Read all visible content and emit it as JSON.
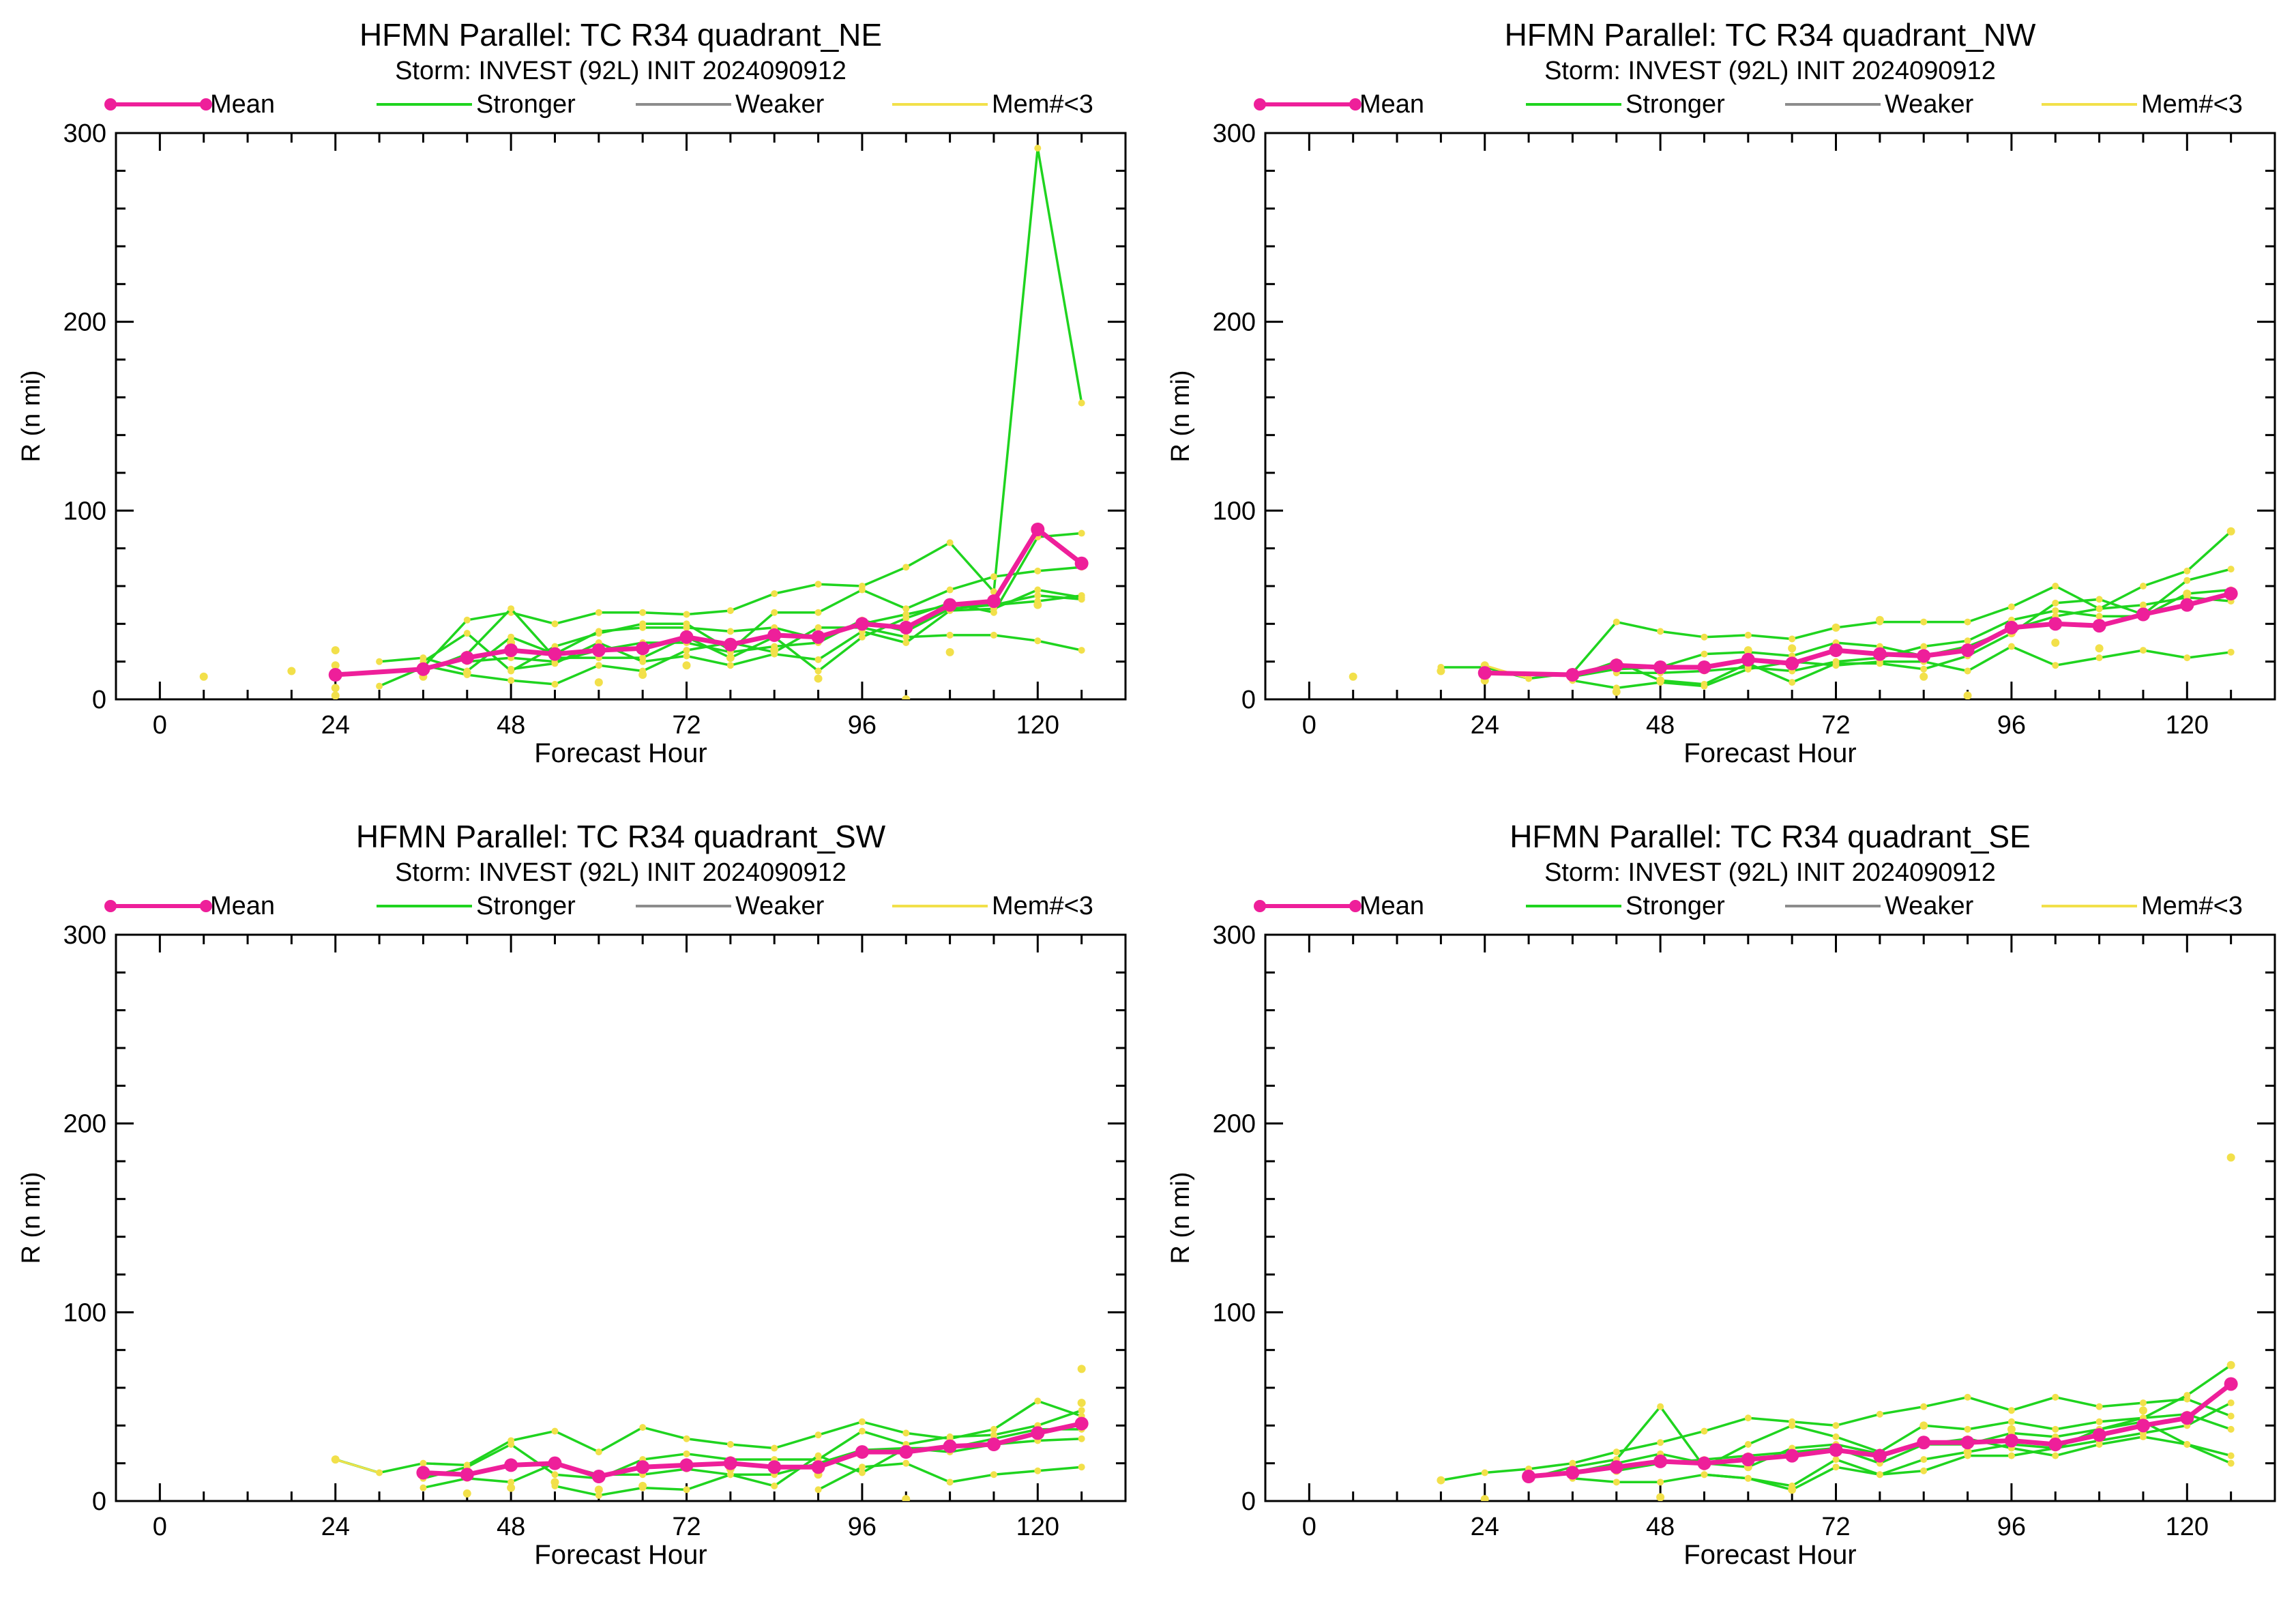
{
  "legend": {
    "mean": "Mean",
    "stronger": "Stronger",
    "weaker": "Weaker",
    "few": "Mem#<3"
  },
  "colors": {
    "mean": "#ee1f9a",
    "stronger": "#1fd41f",
    "weaker": "#8c8c8c",
    "few": "#f2e04a",
    "axis": "#000000"
  },
  "chart_data": [
    {
      "type": "line",
      "title": "HFMN Parallel: TC  R34 quadrant_NE",
      "subtitle": "Storm: INVEST (92L) INIT 2024090912",
      "xlabel": "Forecast Hour",
      "ylabel": "R (n mi)",
      "xlim": [
        -6,
        132
      ],
      "ylim": [
        0,
        300
      ],
      "xticks": [
        0,
        24,
        48,
        72,
        96,
        120
      ],
      "yticks": [
        0,
        100,
        200,
        300
      ],
      "mean": {
        "x": [
          24,
          36,
          42,
          48,
          54,
          60,
          66,
          72,
          78,
          84,
          90,
          96,
          102,
          108,
          114,
          120,
          126
        ],
        "y": [
          13,
          16,
          22,
          26,
          24,
          26,
          27,
          33,
          29,
          34,
          33,
          40,
          38,
          50,
          52,
          90,
          72
        ]
      },
      "stronger": [
        {
          "x": [
            30,
            36,
            42,
            48,
            54,
            60,
            66,
            72,
            78,
            84,
            90,
            96,
            102,
            108,
            114,
            120,
            126
          ],
          "y": [
            7,
            17,
            42,
            46,
            40,
            46,
            46,
            45,
            47,
            56,
            61,
            60,
            70,
            83,
            57,
            292,
            157
          ]
        },
        {
          "x": [
            36,
            42,
            48,
            54,
            60,
            66,
            72,
            78,
            84,
            90,
            96,
            102,
            108,
            114,
            120,
            126
          ],
          "y": [
            20,
            35,
            15,
            28,
            35,
            40,
            40,
            26,
            46,
            46,
            58,
            48,
            58,
            65,
            68,
            70
          ]
        },
        {
          "x": [
            36,
            42,
            48,
            54,
            60,
            66,
            72,
            78,
            84,
            90,
            96,
            102,
            108,
            114,
            120,
            126
          ],
          "y": [
            15,
            24,
            48,
            22,
            22,
            22,
            33,
            22,
            33,
            15,
            33,
            43,
            51,
            46,
            86,
            88
          ]
        },
        {
          "x": [
            36,
            42,
            48,
            54,
            60,
            66,
            72,
            78,
            84,
            90,
            96,
            102,
            108,
            114,
            120,
            126
          ],
          "y": [
            18,
            13,
            10,
            8,
            18,
            15,
            26,
            30,
            25,
            38,
            38,
            33,
            34,
            34,
            31,
            26
          ]
        },
        {
          "x": [
            30,
            36,
            42,
            48,
            54,
            60,
            66,
            72,
            78,
            84,
            90,
            96,
            102,
            108,
            114,
            120,
            126
          ],
          "y": [
            20,
            22,
            15,
            33,
            24,
            36,
            38,
            38,
            36,
            38,
            32,
            40,
            45,
            50,
            50,
            52,
            55
          ]
        },
        {
          "x": [
            42,
            48,
            54,
            60,
            66,
            72,
            78,
            84,
            90,
            96,
            102,
            108,
            114,
            120,
            126
          ],
          "y": [
            20,
            22,
            20,
            26,
            30,
            30,
            25,
            28,
            30,
            42,
            36,
            48,
            50,
            55,
            53
          ]
        },
        {
          "x": [
            48,
            54,
            60,
            66,
            72,
            78,
            84,
            90,
            96,
            102,
            108,
            114,
            120,
            126
          ],
          "y": [
            16,
            19,
            30,
            20,
            23,
            18,
            24,
            21,
            36,
            30,
            47,
            48,
            58,
            54
          ]
        }
      ],
      "few_points": {
        "x": [
          6,
          18,
          24,
          24,
          24,
          24,
          36,
          42,
          48,
          60,
          66,
          72,
          78,
          84,
          90,
          102,
          108,
          120
        ],
        "y": [
          12,
          15,
          26,
          18,
          6,
          2,
          12,
          14,
          30,
          9,
          13,
          18,
          22,
          26,
          11,
          0,
          25,
          50
        ]
      }
    },
    {
      "type": "line",
      "title": "HFMN Parallel: TC  R34 quadrant_NW",
      "subtitle": "Storm: INVEST (92L) INIT 2024090912",
      "xlabel": "Forecast Hour",
      "ylabel": "R (n mi)",
      "xlim": [
        -6,
        132
      ],
      "ylim": [
        0,
        300
      ],
      "xticks": [
        0,
        24,
        48,
        72,
        96,
        120
      ],
      "yticks": [
        0,
        100,
        200,
        300
      ],
      "mean": {
        "x": [
          24,
          36,
          42,
          48,
          54,
          60,
          66,
          72,
          78,
          84,
          90,
          96,
          102,
          108,
          114,
          120,
          126
        ],
        "y": [
          14,
          13,
          18,
          17,
          17,
          21,
          19,
          26,
          24,
          23,
          26,
          38,
          40,
          39,
          45,
          50,
          56
        ]
      },
      "stronger": [
        {
          "x": [
            18,
            24,
            30,
            36,
            42,
            48,
            54,
            60,
            66,
            72,
            78,
            84,
            90,
            96,
            102,
            108,
            114,
            120,
            126
          ],
          "y": [
            17,
            17,
            11,
            14,
            41,
            36,
            33,
            34,
            32,
            38,
            41,
            41,
            41,
            49,
            60,
            48,
            60,
            68,
            89
          ]
        },
        {
          "x": [
            36,
            42,
            48,
            54,
            60,
            66,
            72,
            78,
            84,
            90,
            96,
            102,
            108,
            114,
            120,
            126
          ],
          "y": [
            12,
            20,
            10,
            8,
            19,
            9,
            19,
            19,
            16,
            23,
            35,
            51,
            53,
            45,
            63,
            69
          ]
        },
        {
          "x": [
            36,
            42,
            48,
            54,
            60,
            66,
            72,
            78,
            84,
            90,
            96,
            102,
            108,
            114,
            120,
            126
          ],
          "y": [
            10,
            6,
            9,
            7,
            16,
            20,
            18,
            20,
            20,
            15,
            28,
            18,
            22,
            26,
            22,
            25
          ]
        },
        {
          "x": [
            36,
            42,
            48,
            54,
            60,
            66,
            72,
            78,
            84,
            90,
            96,
            102,
            108,
            114,
            120,
            126
          ],
          "y": [
            12,
            16,
            17,
            24,
            25,
            23,
            30,
            28,
            23,
            28,
            37,
            44,
            48,
            50,
            54,
            52
          ]
        },
        {
          "x": [
            42,
            48,
            54,
            60,
            66,
            72,
            78,
            84,
            90,
            96,
            102,
            108,
            114,
            120,
            126
          ],
          "y": [
            14,
            14,
            15,
            17,
            15,
            20,
            22,
            28,
            31,
            42,
            47,
            44,
            44,
            56,
            58
          ]
        }
      ],
      "few_points": {
        "x": [
          6,
          18,
          24,
          24,
          36,
          42,
          48,
          60,
          66,
          72,
          78,
          84,
          90,
          96,
          102,
          108,
          114,
          120,
          126
        ],
        "y": [
          12,
          15,
          18,
          10,
          11,
          4,
          10,
          26,
          27,
          38,
          42,
          12,
          2,
          35,
          30,
          27,
          47,
          56,
          89
        ]
      }
    },
    {
      "type": "line",
      "title": "HFMN Parallel: TC  R34 quadrant_SW",
      "subtitle": "Storm: INVEST (92L) INIT 2024090912",
      "xlabel": "Forecast Hour",
      "ylabel": "R (n mi)",
      "xlim": [
        -6,
        132
      ],
      "ylim": [
        0,
        300
      ],
      "xticks": [
        0,
        24,
        48,
        72,
        96,
        120
      ],
      "yticks": [
        0,
        100,
        200,
        300
      ],
      "mean": {
        "x": [
          36,
          42,
          48,
          54,
          60,
          66,
          72,
          78,
          84,
          90,
          96,
          102,
          108,
          114,
          120,
          126
        ],
        "y": [
          15,
          14,
          19,
          20,
          13,
          18,
          19,
          20,
          18,
          18,
          26,
          26,
          29,
          30,
          36,
          41
        ]
      },
      "stronger": [
        {
          "x": [
            24,
            30,
            36,
            42,
            48,
            54,
            60,
            66,
            72,
            78,
            84,
            90,
            96,
            102,
            108,
            114,
            120,
            126
          ],
          "y": [
            22,
            15,
            20,
            19,
            32,
            37,
            26,
            39,
            33,
            30,
            28,
            35,
            42,
            36,
            33,
            38,
            53,
            45
          ]
        },
        {
          "x": [
            36,
            42,
            48,
            54,
            60,
            66,
            72,
            78,
            84,
            90,
            96,
            102,
            108,
            114,
            120,
            126
          ],
          "y": [
            12,
            18,
            30,
            14,
            12,
            22,
            25,
            22,
            22,
            22,
            37,
            30,
            34,
            35,
            40,
            48
          ]
        },
        {
          "x": [
            36,
            42,
            48,
            54,
            60,
            66,
            72,
            78,
            84,
            90,
            96,
            102,
            108,
            114,
            120,
            126
          ],
          "y": [
            7,
            12,
            10,
            20,
            14,
            14,
            17,
            14,
            14,
            20,
            27,
            28,
            26,
            30,
            32,
            33
          ]
        },
        {
          "x": [
            54,
            60,
            66,
            72,
            78,
            84,
            90,
            96,
            102,
            108,
            114,
            120,
            126
          ],
          "y": [
            8,
            3,
            7,
            6,
            14,
            8,
            24,
            15,
            28,
            28,
            33,
            38,
            38
          ]
        },
        {
          "x": [
            90,
            96,
            102,
            108,
            114,
            120,
            126
          ],
          "y": [
            6,
            18,
            20,
            10,
            14,
            16,
            18
          ]
        }
      ],
      "few_points": {
        "x": [
          24,
          42,
          48,
          54,
          60,
          66,
          78,
          90,
          102,
          126,
          126
        ],
        "y": [
          22,
          4,
          7,
          10,
          6,
          8,
          17,
          14,
          1,
          70,
          52
        ]
      }
    },
    {
      "type": "line",
      "title": "HFMN Parallel: TC  R34 quadrant_SE",
      "subtitle": "Storm: INVEST (92L) INIT 2024090912",
      "xlabel": "Forecast Hour",
      "ylabel": "R (n mi)",
      "xlim": [
        -6,
        132
      ],
      "ylim": [
        0,
        300
      ],
      "xticks": [
        0,
        24,
        48,
        72,
        96,
        120
      ],
      "yticks": [
        0,
        100,
        200,
        300
      ],
      "mean": {
        "x": [
          30,
          36,
          42,
          48,
          54,
          60,
          66,
          72,
          78,
          84,
          90,
          96,
          102,
          108,
          114,
          120,
          126
        ],
        "y": [
          13,
          15,
          18,
          21,
          20,
          22,
          24,
          27,
          24,
          31,
          31,
          32,
          30,
          35,
          40,
          44,
          62
        ]
      },
      "stronger": [
        {
          "x": [
            18,
            24,
            30,
            36,
            42,
            48,
            54,
            60,
            66,
            72,
            78,
            84,
            90,
            96,
            102,
            108,
            114,
            120,
            126
          ],
          "y": [
            11,
            15,
            17,
            20,
            26,
            31,
            37,
            44,
            42,
            40,
            46,
            50,
            55,
            48,
            55,
            50,
            52,
            54,
            45
          ]
        },
        {
          "x": [
            30,
            36,
            42,
            48,
            54,
            60,
            66,
            72,
            78,
            84,
            90,
            96,
            102,
            108,
            114,
            120,
            126
          ],
          "y": [
            12,
            18,
            22,
            50,
            18,
            30,
            40,
            34,
            26,
            40,
            38,
            42,
            38,
            42,
            44,
            56,
            72
          ]
        },
        {
          "x": [
            36,
            42,
            48,
            54,
            60,
            66,
            72,
            78,
            84,
            90,
            96,
            102,
            108,
            114,
            120,
            126
          ],
          "y": [
            15,
            20,
            25,
            20,
            18,
            28,
            30,
            25,
            30,
            30,
            36,
            34,
            38,
            44,
            46,
            38
          ]
        },
        {
          "x": [
            36,
            42,
            48,
            54,
            60,
            66,
            72,
            78,
            84,
            90,
            96,
            102,
            108,
            114,
            120,
            126
          ],
          "y": [
            12,
            10,
            10,
            14,
            12,
            8,
            22,
            14,
            16,
            24,
            24,
            28,
            32,
            36,
            40,
            52
          ]
        },
        {
          "x": [
            42,
            48,
            54,
            60,
            66,
            72,
            78,
            84,
            90,
            96,
            102,
            108,
            114,
            120,
            126
          ],
          "y": [
            16,
            20,
            22,
            24,
            26,
            28,
            20,
            30,
            33,
            28,
            24,
            30,
            34,
            30,
            20
          ]
        },
        {
          "x": [
            54,
            60,
            66,
            72,
            78,
            84,
            90,
            96,
            102,
            108,
            114,
            120,
            126
          ],
          "y": [
            14,
            12,
            6,
            18,
            14,
            22,
            26,
            30,
            28,
            38,
            42,
            30,
            24
          ]
        }
      ],
      "few_points": {
        "x": [
          18,
          24,
          42,
          48,
          54,
          60,
          66,
          72,
          84,
          90,
          96,
          102,
          114,
          126,
          126
        ],
        "y": [
          11,
          1,
          16,
          2,
          20,
          18,
          6,
          29,
          40,
          26,
          38,
          33,
          48,
          182,
          72
        ]
      }
    }
  ]
}
